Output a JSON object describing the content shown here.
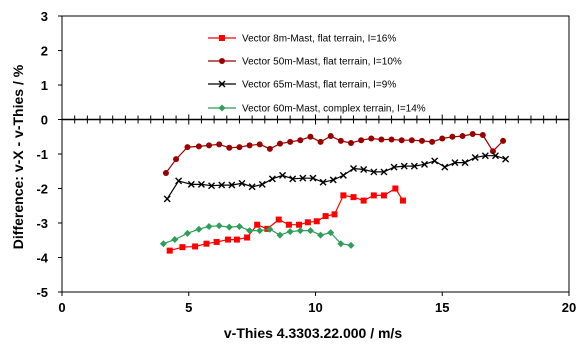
{
  "chart_data": {
    "type": "line",
    "xlabel": "v-Thies 4.3303.22.000 / m/s",
    "ylabel": "Difference: v-X - v-Thies / %",
    "xlim": [
      0,
      20
    ],
    "ylim": [
      -5,
      3
    ],
    "x_ticks": [
      0,
      5,
      10,
      15,
      20
    ],
    "y_ticks": [
      3,
      2,
      1,
      0,
      -1,
      -2,
      -3,
      -4,
      -5
    ],
    "grid": false,
    "legend_position": "top-center",
    "series": [
      {
        "name": "Vector 8m-Mast, flat terrain, I=16%",
        "color": "#ff0000",
        "marker": "square",
        "x": [
          4.25,
          4.75,
          5.25,
          5.7,
          6.1,
          6.55,
          6.9,
          7.3,
          7.7,
          8.1,
          8.55,
          8.95,
          9.35,
          9.7,
          10.05,
          10.4,
          10.75,
          11.1,
          11.5,
          11.9,
          12.3,
          12.7,
          13.15,
          13.45
        ],
        "values": [
          -3.8,
          -3.7,
          -3.68,
          -3.6,
          -3.55,
          -3.48,
          -3.48,
          -3.42,
          -3.05,
          -3.17,
          -2.9,
          -3.05,
          -3.05,
          -2.98,
          -2.95,
          -2.8,
          -2.75,
          -2.2,
          -2.25,
          -2.35,
          -2.2,
          -2.2,
          -2.0,
          -2.35
        ]
      },
      {
        "name": "Vector 50m-Mast, flat terrain, I=10%",
        "color": "#990000",
        "marker": "circle",
        "x": [
          4.1,
          4.5,
          4.95,
          5.4,
          5.8,
          6.2,
          6.6,
          7.0,
          7.4,
          7.8,
          8.2,
          8.6,
          9.0,
          9.4,
          9.8,
          10.2,
          10.6,
          11.0,
          11.4,
          11.8,
          12.2,
          12.6,
          13.0,
          13.4,
          13.8,
          14.2,
          14.6,
          15.0,
          15.4,
          15.8,
          16.2,
          16.6,
          17.0,
          17.4
        ],
        "values": [
          -1.55,
          -1.15,
          -0.8,
          -0.78,
          -0.75,
          -0.72,
          -0.82,
          -0.8,
          -0.75,
          -0.72,
          -0.85,
          -0.7,
          -0.65,
          -0.6,
          -0.5,
          -0.65,
          -0.48,
          -0.62,
          -0.68,
          -0.6,
          -0.55,
          -0.58,
          -0.58,
          -0.6,
          -0.6,
          -0.62,
          -0.65,
          -0.55,
          -0.5,
          -0.48,
          -0.42,
          -0.45,
          -0.92,
          -0.62
        ]
      },
      {
        "name": "Vector 65m-Mast, flat terrain, I=9%",
        "color": "#000000",
        "marker": "x",
        "x": [
          4.15,
          4.6,
          5.1,
          5.5,
          5.9,
          6.3,
          6.7,
          7.1,
          7.5,
          7.9,
          8.3,
          8.7,
          9.1,
          9.5,
          9.9,
          10.3,
          10.7,
          11.1,
          11.5,
          11.9,
          12.3,
          12.7,
          13.1,
          13.5,
          13.9,
          14.3,
          14.7,
          15.1,
          15.5,
          15.9,
          16.3,
          16.7,
          17.1,
          17.5
        ],
        "values": [
          -2.3,
          -1.78,
          -1.88,
          -1.88,
          -1.92,
          -1.9,
          -1.9,
          -1.85,
          -1.95,
          -1.88,
          -1.72,
          -1.62,
          -1.72,
          -1.7,
          -1.7,
          -1.82,
          -1.75,
          -1.62,
          -1.42,
          -1.45,
          -1.52,
          -1.52,
          -1.38,
          -1.35,
          -1.35,
          -1.3,
          -1.2,
          -1.38,
          -1.25,
          -1.25,
          -1.1,
          -1.05,
          -1.05,
          -1.15
        ]
      },
      {
        "name": "Vector 60m-Mast, complex terrain, I=14%",
        "color": "#2e9e5a",
        "marker": "diamond",
        "x": [
          4.0,
          4.45,
          4.95,
          5.4,
          5.8,
          6.2,
          6.6,
          7.0,
          7.4,
          7.8,
          8.2,
          8.6,
          9.0,
          9.4,
          9.8,
          10.2,
          10.6,
          11.0,
          11.4
        ],
        "values": [
          -3.6,
          -3.48,
          -3.3,
          -3.18,
          -3.1,
          -3.08,
          -3.12,
          -3.1,
          -3.22,
          -3.22,
          -3.18,
          -3.35,
          -3.25,
          -3.22,
          -3.22,
          -3.35,
          -3.28,
          -3.6,
          -3.65
        ]
      }
    ]
  }
}
